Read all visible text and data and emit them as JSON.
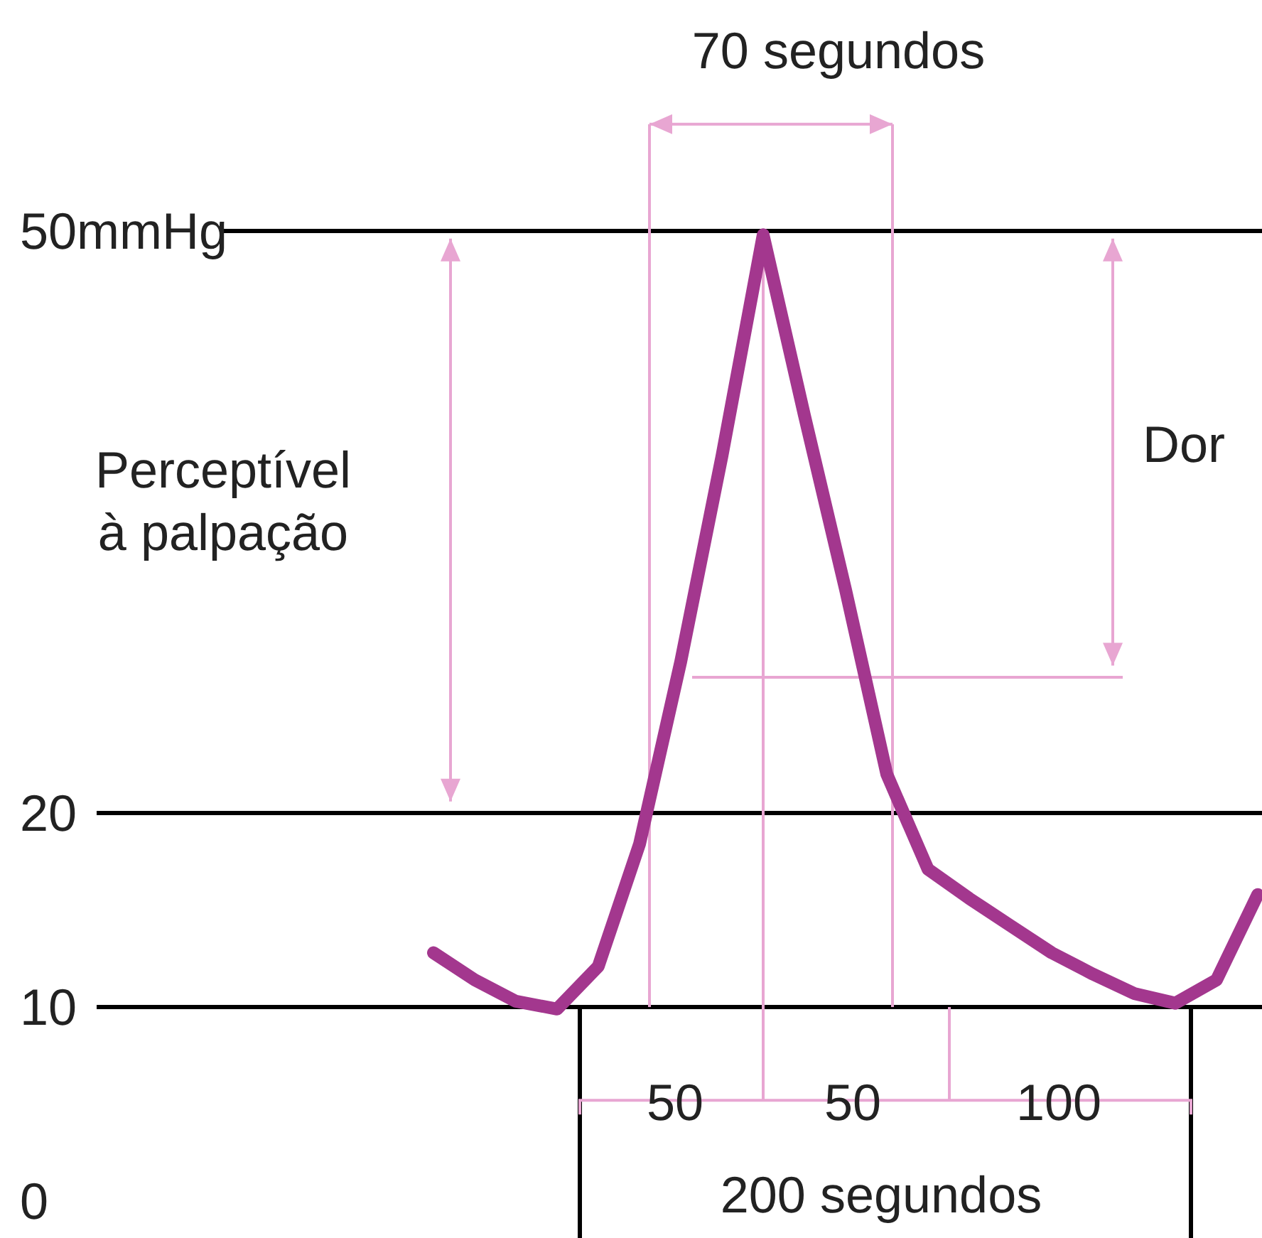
{
  "chart_data": {
    "type": "line",
    "categories": [
      null,
      null,
      null,
      null,
      null,
      null,
      null,
      null,
      null,
      null,
      null,
      null,
      null,
      null,
      null,
      null,
      null,
      null,
      null,
      null,
      null,
      null,
      null,
      null,
      null,
      null,
      null,
      null,
      null,
      null,
      null
    ],
    "series": [
      {
        "color": "#a3378e",
        "values": [
          null,
          null,
          null,
          null,
          null,
          null,
          null,
          null,
          null,
          null,
          12.8,
          11.4,
          10.3,
          9.9,
          12.1,
          18.4,
          27.8,
          38.4,
          49.8,
          40.5,
          31.5,
          22.0,
          17.1,
          15.6,
          14.2,
          12.8,
          11.7,
          10.7,
          10.2,
          11.4,
          15.8
        ]
      }
    ],
    "ylim": [
      -1.9,
      61.9
    ],
    "yticks": [
      0,
      10,
      20,
      {
        "value": 50,
        "label": "50mmHg"
      }
    ],
    "tick_labels": "y",
    "grid": "y",
    "marker": "none",
    "line_style": "solid",
    "ref_lines": [
      {
        "axis": "y",
        "value": 27,
        "color": "#e8a6d2"
      }
    ],
    "annotations": [
      "70 segundos",
      "Perceptível\nà palpação",
      "Dor",
      "50",
      "50",
      "100",
      "200 segundos"
    ]
  }
}
